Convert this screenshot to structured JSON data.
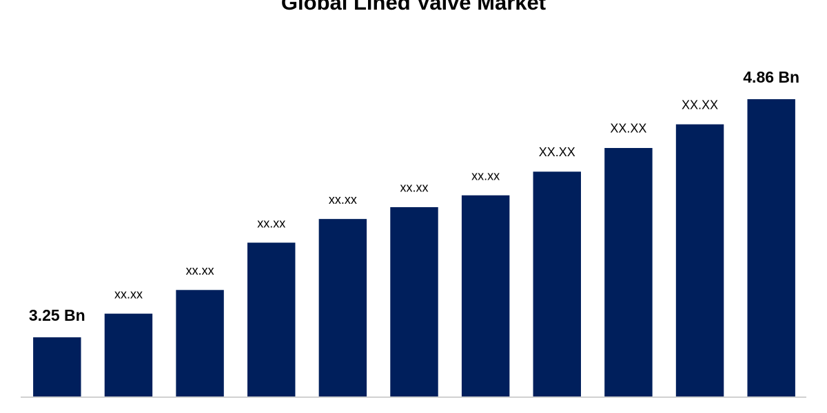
{
  "chart_data": {
    "type": "bar",
    "title": "Global Lined Valve Market",
    "categories": [
      null,
      null,
      null,
      null,
      null,
      null,
      null,
      null,
      null,
      null,
      null
    ],
    "values": [
      3.25,
      3.41,
      3.57,
      3.89,
      4.05,
      4.13,
      4.21,
      4.37,
      4.53,
      4.69,
      4.86
    ],
    "value_labels": [
      "3.25 Bn",
      "xx.xx",
      "xx.xx",
      "xx.xx",
      "xx.xx",
      "xx.xx",
      "xx.xx",
      "XX.XX",
      "XX.XX",
      "XX.XX",
      "4.86 Bn"
    ],
    "color": "#001f5c",
    "ylim": [
      2.85,
      5.0
    ]
  }
}
